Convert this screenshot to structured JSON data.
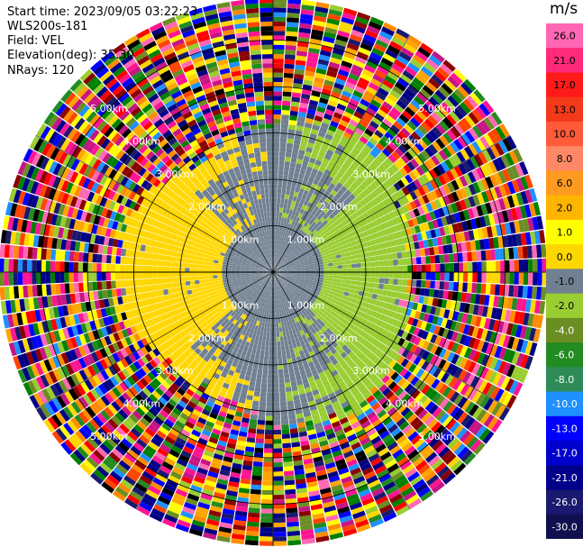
{
  "header": {
    "start_time": "Start time: 2023/09/05 03:22:23",
    "station": "WLS200s-181",
    "field": "Field: VEL",
    "elevation": "Elevation(deg): 35.30",
    "nrays": "NRays: 120"
  },
  "chart_data": {
    "type": "heatmap",
    "projection": "polar-ppi",
    "field": "VEL",
    "units": "m/s",
    "nrays": 120,
    "elevation_deg": 35.3,
    "range_rings_km": [
      1.0,
      2.0,
      3.0,
      4.0,
      5.0
    ],
    "ring_labels": {
      "1": "1.00km",
      "2": "2.00km",
      "3": "3.00km",
      "4": "4.00km",
      "5": "5.00km"
    },
    "max_range_km": 5.9,
    "valid_range_km": 3.2,
    "colorbar": {
      "unit_label": "m/s",
      "ticks": [
        "26.0",
        "21.0",
        "17.0",
        "13.0",
        "10.0",
        "8.0",
        "6.0",
        "2.0",
        "1.0",
        "0.0",
        "-1.0",
        "-2.0",
        "-4.0",
        "-6.0",
        "-8.0",
        "-10.0",
        "-13.0",
        "-17.0",
        "-21.0",
        "-26.0",
        "-30.0"
      ],
      "colors": [
        "#ff66b3",
        "#ff2a7a",
        "#ff1a1a",
        "#f23a1a",
        "#ff5a3a",
        "#ff8866",
        "#ff9a20",
        "#ffb400",
        "#ffff00",
        "#ffd700",
        "#708090",
        "#9acd32",
        "#6b8e23",
        "#228b22",
        "#2e8b57",
        "#1e90ff",
        "#0000ff",
        "#0000cd",
        "#00008b",
        "#191970",
        "#101050"
      ]
    },
    "palette_noise": [
      "#ff1493",
      "#ff0000",
      "#ffd700",
      "#000080",
      "#0000ff",
      "#1e90ff",
      "#228b22",
      "#9acd32",
      "#ffff00",
      "#ff8c00",
      "#ff69b4",
      "#8b0000",
      "#00008b",
      "#6b8e23",
      "#191970",
      "#ff4500",
      "#c71585",
      "#000000",
      "#008000",
      "#ffa500"
    ],
    "near_field_colors": {
      "approaching_west": "#ffd700",
      "receding_east": "#9acd32",
      "zero": "#708090"
    }
  }
}
